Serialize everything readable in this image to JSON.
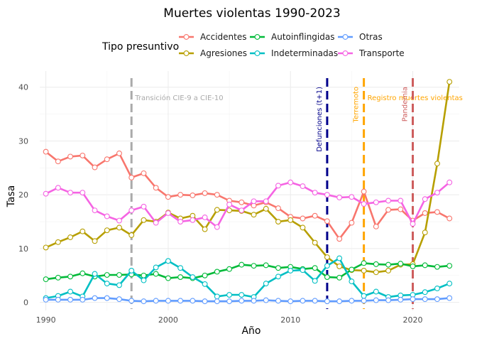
{
  "chart_data": {
    "type": "line",
    "title": "Muertes violentas 1990-2023",
    "xlabel": "Año",
    "ylabel": "Tasa",
    "xlim": [
      1989.5,
      2023.8
    ],
    "ylim": [
      -1.5,
      43
    ],
    "x_ticks": [
      1990,
      2000,
      2010,
      2020
    ],
    "y_ticks": [
      0,
      10,
      20,
      30,
      40
    ],
    "grid": true,
    "legend": {
      "title": "Tipo presuntivo",
      "position": "top",
      "entries": [
        "Accidentes",
        "Agresiones",
        "Autoinflingidas",
        "Indeterminadas",
        "Otras",
        "Transporte"
      ]
    },
    "x": [
      1990,
      1991,
      1992,
      1993,
      1994,
      1995,
      1996,
      1997,
      1998,
      1999,
      2000,
      2001,
      2002,
      2003,
      2004,
      2005,
      2006,
      2007,
      2008,
      2009,
      2010,
      2011,
      2012,
      2013,
      2014,
      2015,
      2016,
      2017,
      2018,
      2019,
      2020,
      2021,
      2022,
      2023
    ],
    "series": [
      {
        "name": "Accidentes",
        "color": "#F8766D",
        "values": [
          28.0,
          26.2,
          27.1,
          27.3,
          25.1,
          26.6,
          27.7,
          23.2,
          24.0,
          21.3,
          19.6,
          20.0,
          19.9,
          20.3,
          20.0,
          18.9,
          18.6,
          18.0,
          18.6,
          17.5,
          15.9,
          15.6,
          16.1,
          15.1,
          11.8,
          14.8,
          20.6,
          14.1,
          17.2,
          17.3,
          15.2,
          16.6,
          16.8,
          15.6
        ]
      },
      {
        "name": "Agresiones",
        "color": "#B79F00",
        "values": [
          10.2,
          11.2,
          12.1,
          13.2,
          11.4,
          13.4,
          13.9,
          12.5,
          15.3,
          15.0,
          16.7,
          15.6,
          16.1,
          13.6,
          17.2,
          17.1,
          17.0,
          16.3,
          17.4,
          15.0,
          15.3,
          13.9,
          11.1,
          8.4,
          6.7,
          6.0,
          5.9,
          5.6,
          5.9,
          7.0,
          7.1,
          13.0,
          25.8,
          41.0
        ]
      },
      {
        "name": "Autoinflingidas",
        "color": "#00BA38",
        "values": [
          4.3,
          4.6,
          4.8,
          5.4,
          4.8,
          5.1,
          5.1,
          5.2,
          5.0,
          5.3,
          4.5,
          4.7,
          4.5,
          5.0,
          5.7,
          6.2,
          7.0,
          6.8,
          6.9,
          6.4,
          6.6,
          6.2,
          6.4,
          4.7,
          4.6,
          6.1,
          7.3,
          7.1,
          7.0,
          7.2,
          6.7,
          6.9,
          6.6,
          6.8
        ]
      },
      {
        "name": "Indeterminadas",
        "color": "#00BFC4",
        "values": [
          0.8,
          1.2,
          2.0,
          1.1,
          5.3,
          3.5,
          3.2,
          5.9,
          4.1,
          6.5,
          7.7,
          6.4,
          4.7,
          3.4,
          1.1,
          1.4,
          1.4,
          1.0,
          3.5,
          4.8,
          5.9,
          6.0,
          4.0,
          6.8,
          8.2,
          3.9,
          1.2,
          2.0,
          1.0,
          1.3,
          1.4,
          1.9,
          2.6,
          3.5
        ]
      },
      {
        "name": "Otras",
        "color": "#619CFF",
        "values": [
          0.5,
          0.5,
          0.5,
          0.5,
          0.8,
          0.8,
          0.6,
          0.3,
          0.2,
          0.3,
          0.3,
          0.3,
          0.3,
          0.2,
          0.2,
          0.2,
          0.3,
          0.3,
          0.4,
          0.3,
          0.2,
          0.3,
          0.3,
          0.2,
          0.2,
          0.3,
          0.3,
          0.4,
          0.4,
          0.5,
          0.6,
          0.6,
          0.6,
          0.8
        ]
      },
      {
        "name": "Transporte",
        "color": "#F564E3",
        "values": [
          20.2,
          21.3,
          20.4,
          20.4,
          17.1,
          16.0,
          15.2,
          17.1,
          17.8,
          14.8,
          16.6,
          15.0,
          15.3,
          15.8,
          14.0,
          18.2,
          17.1,
          18.8,
          18.8,
          21.7,
          22.3,
          21.6,
          20.4,
          20.0,
          19.5,
          19.6,
          18.3,
          18.6,
          18.9,
          18.9,
          14.6,
          19.2,
          20.4,
          22.3
        ]
      }
    ],
    "annotations": [
      {
        "x": 1997,
        "label": "Transición CIE-9 a CIE-10",
        "color": "#AAAAAA",
        "orientation": "horizontal"
      },
      {
        "x": 2013,
        "label": "Defunciones (t+1)",
        "color": "#00008B",
        "orientation": "vertical"
      },
      {
        "x": 2016,
        "label": "Terremoto",
        "color": "#FFA500",
        "orientation": "vertical"
      },
      {
        "x": 2016,
        "label": "Registro muertes violentas",
        "color": "#FFA500",
        "orientation": "horizontal"
      },
      {
        "x": 2020,
        "label": "Pandemia",
        "color": "#CD5C5C",
        "orientation": "vertical"
      }
    ]
  }
}
